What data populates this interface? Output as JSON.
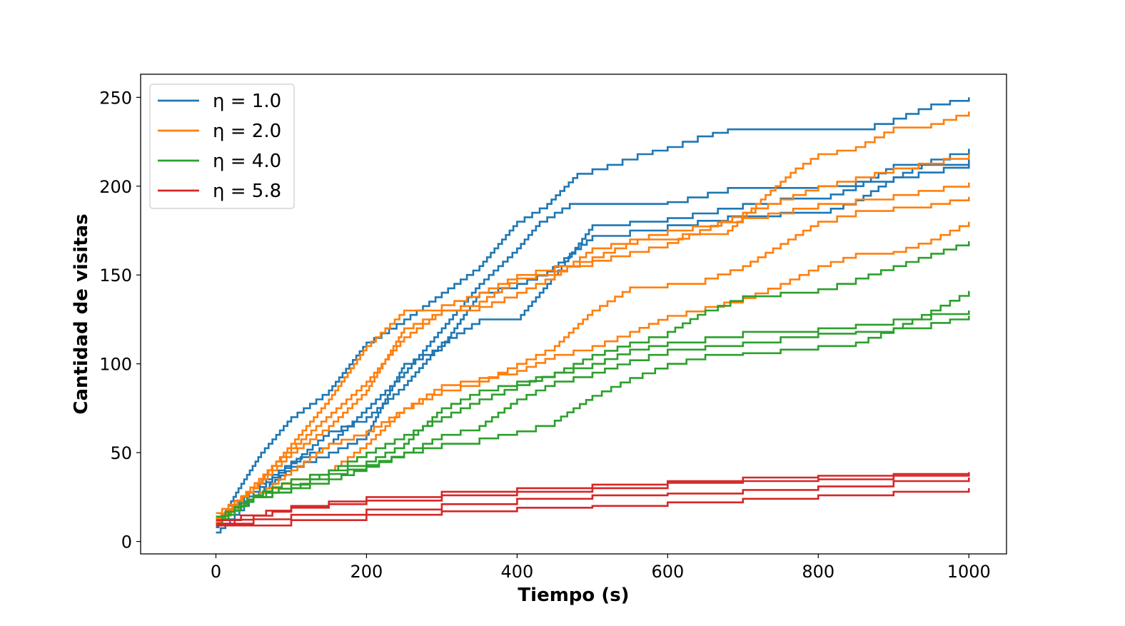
{
  "chart_data": {
    "type": "line",
    "title": "",
    "xlabel": "Tiempo (s)",
    "ylabel": "Cantidad de visitas",
    "xlim": [
      -100,
      1050
    ],
    "ylim": [
      -7,
      263
    ],
    "xticks": [
      0,
      200,
      400,
      600,
      800,
      1000
    ],
    "yticks": [
      0,
      50,
      100,
      150,
      200,
      250
    ],
    "grid": false,
    "legend_position": "top-left",
    "step": true,
    "groups": [
      {
        "name": "η = 1.0",
        "color": "#1f77b4",
        "runs": [
          {
            "x": [
              0,
              30,
              60,
              100,
              150,
              200,
              250,
              300,
              350,
              400,
              440,
              480,
              520,
              560,
              600,
              640,
              680,
              750,
              850,
              900,
              950,
              1000
            ],
            "y": [
              8,
              30,
              50,
              70,
              85,
              112,
              125,
              140,
              155,
              180,
              190,
              207,
              212,
              218,
              222,
              228,
              232,
              232,
              232,
              238,
              246,
              250
            ]
          },
          {
            "x": [
              0,
              50,
              100,
              150,
              200,
              250,
              300,
              350,
              400,
              430,
              470,
              500,
              600,
              680,
              800,
              900,
              950,
              1000
            ],
            "y": [
              10,
              30,
              45,
              55,
              75,
              95,
              120,
              145,
              165,
              180,
              190,
              190,
              191,
              199,
              200,
              205,
              215,
              221
            ]
          },
          {
            "x": [
              0,
              50,
              100,
              150,
              200,
              250,
              300,
              350,
              400,
              450,
              500,
              600,
              700,
              750,
              800,
              850,
              900,
              1000
            ],
            "y": [
              12,
              28,
              44,
              62,
              70,
              88,
              112,
              125,
              125,
              150,
              178,
              182,
              190,
              193,
              193,
              200,
              212,
              215
            ]
          },
          {
            "x": [
              0,
              50,
              100,
              150,
              200,
              250,
              300,
              350,
              400,
              440,
              500,
              600,
              680,
              750,
              800,
              850,
              900,
              1000
            ],
            "y": [
              5,
              25,
              42,
              50,
              60,
              100,
              110,
              140,
              145,
              152,
              172,
              178,
              183,
              185,
              185,
              192,
              205,
              213
            ]
          }
        ]
      },
      {
        "name": "η = 2.0",
        "color": "#ff7f0e",
        "runs": [
          {
            "x": [
              0,
              40,
              80,
              120,
              160,
              200,
              250,
              300,
              350,
              400,
              450,
              500,
              560,
              620,
              680,
              730,
              770,
              800,
              850,
              900,
              950,
              1000
            ],
            "y": [
              11,
              28,
              45,
              60,
              75,
              90,
              115,
              130,
              135,
              148,
              152,
              160,
              170,
              173,
              175,
              195,
              210,
              218,
              222,
              233,
              235,
              242
            ]
          },
          {
            "x": [
              0,
              50,
              100,
              150,
              200,
              250,
              300,
              350,
              400,
              450,
              500,
              600,
              700,
              800,
              900,
              1000
            ],
            "y": [
              16,
              30,
              55,
              80,
              110,
              130,
              133,
              140,
              150,
              155,
              158,
              168,
              185,
              200,
              210,
              218
            ]
          },
          {
            "x": [
              0,
              50,
              100,
              150,
              200,
              250,
              300,
              350,
              400,
              450,
              500,
              600,
              700,
              800,
              900,
              1000
            ],
            "y": [
              13,
              30,
              50,
              65,
              85,
              120,
              130,
              132,
              140,
              150,
              165,
              175,
              182,
              190,
              195,
              202
            ]
          },
          {
            "x": [
              0,
              50,
              100,
              150,
              200,
              250,
              300,
              350,
              400,
              450,
              500,
              550,
              600,
              650,
              700,
              760,
              800,
              850,
              900,
              950,
              1000
            ],
            "y": [
              10,
              25,
              40,
              55,
              62,
              75,
              85,
              90,
              100,
              110,
              130,
              143,
              145,
              148,
              155,
              170,
              180,
              186,
              188,
              190,
              194
            ]
          },
          {
            "x": [
              0,
              50,
              100,
              150,
              200,
              250,
              300,
              350,
              400,
              450,
              500,
              550,
              600,
              650,
              700,
              750,
              800,
              850,
              900,
              950,
              1000
            ],
            "y": [
              12,
              25,
              35,
              40,
              55,
              75,
              88,
              92,
              96,
              105,
              110,
              118,
              127,
              132,
              137,
              145,
              155,
              162,
              163,
              170,
              180
            ]
          }
        ]
      },
      {
        "name": "η = 4.0",
        "color": "#2ca02c",
        "runs": [
          {
            "x": [
              0,
              50,
              100,
              150,
              200,
              250,
              300,
              350,
              400,
              450,
              500,
              550,
              600,
              650,
              700,
              800,
              850,
              900,
              950,
              1000
            ],
            "y": [
              10,
              25,
              30,
              40,
              45,
              55,
              75,
              85,
              90,
              95,
              105,
              112,
              118,
              130,
              138,
              142,
              148,
              155,
              162,
              169
            ]
          },
          {
            "x": [
              0,
              50,
              100,
              150,
              200,
              250,
              300,
              350,
              400,
              450,
              500,
              550,
              600,
              650,
              700,
              800,
              850,
              900,
              950,
              1000
            ],
            "y": [
              12,
              26,
              35,
              40,
              50,
              60,
              70,
              80,
              88,
              95,
              100,
              108,
              112,
              115,
              118,
              120,
              122,
              125,
              128,
              130
            ]
          },
          {
            "x": [
              0,
              50,
              100,
              150,
              200,
              250,
              300,
              350,
              400,
              450,
              500,
              550,
              600,
              650,
              700,
              750,
              800,
              850,
              900,
              950,
              1000
            ],
            "y": [
              10,
              25,
              32,
              38,
              43,
              50,
              60,
              65,
              80,
              90,
              95,
              102,
              108,
              110,
              112,
              115,
              117,
              118,
              120,
              123,
              127
            ]
          },
          {
            "x": [
              0,
              50,
              100,
              150,
              200,
              250,
              300,
              350,
              400,
              450,
              500,
              550,
              600,
              650,
              700,
              750,
              800,
              850,
              900,
              950,
              1000
            ],
            "y": [
              14,
              25,
              30,
              35,
              42,
              50,
              55,
              58,
              62,
              68,
              82,
              92,
              100,
              105,
              106,
              108,
              110,
              112,
              120,
              130,
              141
            ]
          }
        ]
      },
      {
        "name": "η = 5.8",
        "color": "#d62728",
        "runs": [
          {
            "x": [
              0,
              100,
              200,
              300,
              400,
              500,
              600,
              700,
              800,
              900,
              1000
            ],
            "y": [
              12,
              20,
              25,
              28,
              30,
              32,
              34,
              36,
              37,
              38,
              39
            ]
          },
          {
            "x": [
              0,
              100,
              200,
              300,
              400,
              500,
              600,
              700,
              800,
              900,
              1000
            ],
            "y": [
              10,
              19,
              23,
              26,
              28,
              30,
              33,
              34,
              35,
              37,
              38
            ]
          },
          {
            "x": [
              0,
              100,
              200,
              300,
              400,
              500,
              600,
              700,
              800,
              900,
              1000
            ],
            "y": [
              10,
              15,
              18,
              21,
              24,
              26,
              27,
              29,
              31,
              34,
              36
            ]
          },
          {
            "x": [
              0,
              100,
              200,
              300,
              400,
              500,
              600,
              700,
              800,
              900,
              1000
            ],
            "y": [
              9,
              12,
              15,
              17,
              19,
              20,
              22,
              24,
              26,
              28,
              30
            ]
          }
        ]
      }
    ]
  }
}
